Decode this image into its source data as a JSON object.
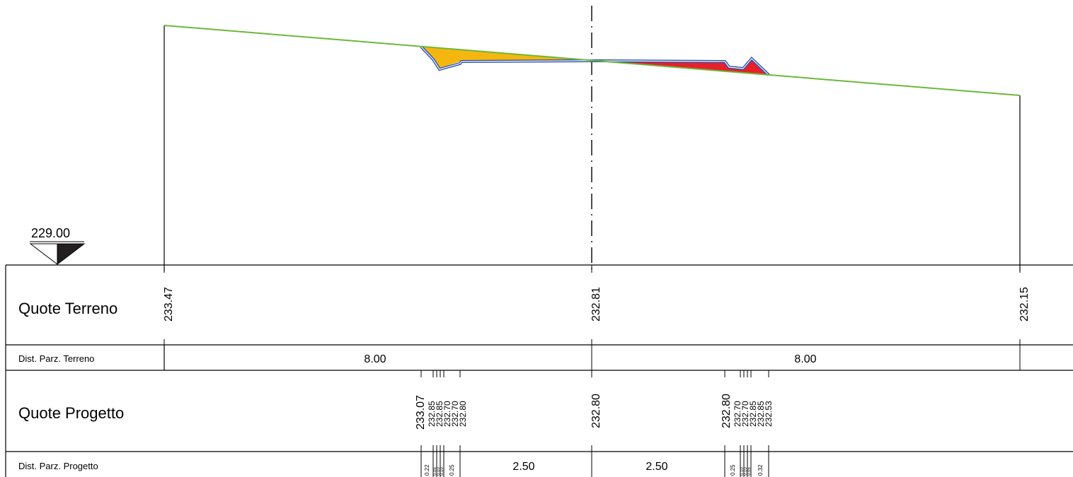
{
  "datum": {
    "label": "229.00",
    "value": 229.0
  },
  "rows": {
    "quote_terreno": "Quote Terreno",
    "dist_parz_terreno": "Dist. Parz. Terreno",
    "quote_progetto": "Quote Progetto",
    "dist_parz_progetto": "Dist. Parz. Progetto"
  },
  "quote_terreno": {
    "left": "233.47",
    "center": "232.81",
    "right": "232.15"
  },
  "dist_parz_terreno": {
    "left": "8.00",
    "right": "8.00"
  },
  "quote_progetto": {
    "left_group": "233.07",
    "left_small": [
      "232.85",
      "232.85",
      "232.70",
      "232.70",
      "232.80"
    ],
    "center": "232.80",
    "right_group": "232.80",
    "right_small": [
      "232.70",
      "232.70",
      "232.85",
      "232.85",
      "232.53"
    ]
  },
  "dist_parz_progetto": {
    "left_small": [
      "0.22",
      "0.05",
      "0.10",
      "0.10",
      "0.25"
    ],
    "left_main": "2.50",
    "right_main": "2.50",
    "right_small": [
      "0.25",
      "0.10",
      "0.10",
      "0.05",
      "0.32"
    ]
  },
  "colors": {
    "terrain": "#6cb83a",
    "road_outline": "#2a4fa8",
    "fill_cut": "#f5b70f",
    "fill_embankment": "#e8202a",
    "axis": "#000000"
  }
}
